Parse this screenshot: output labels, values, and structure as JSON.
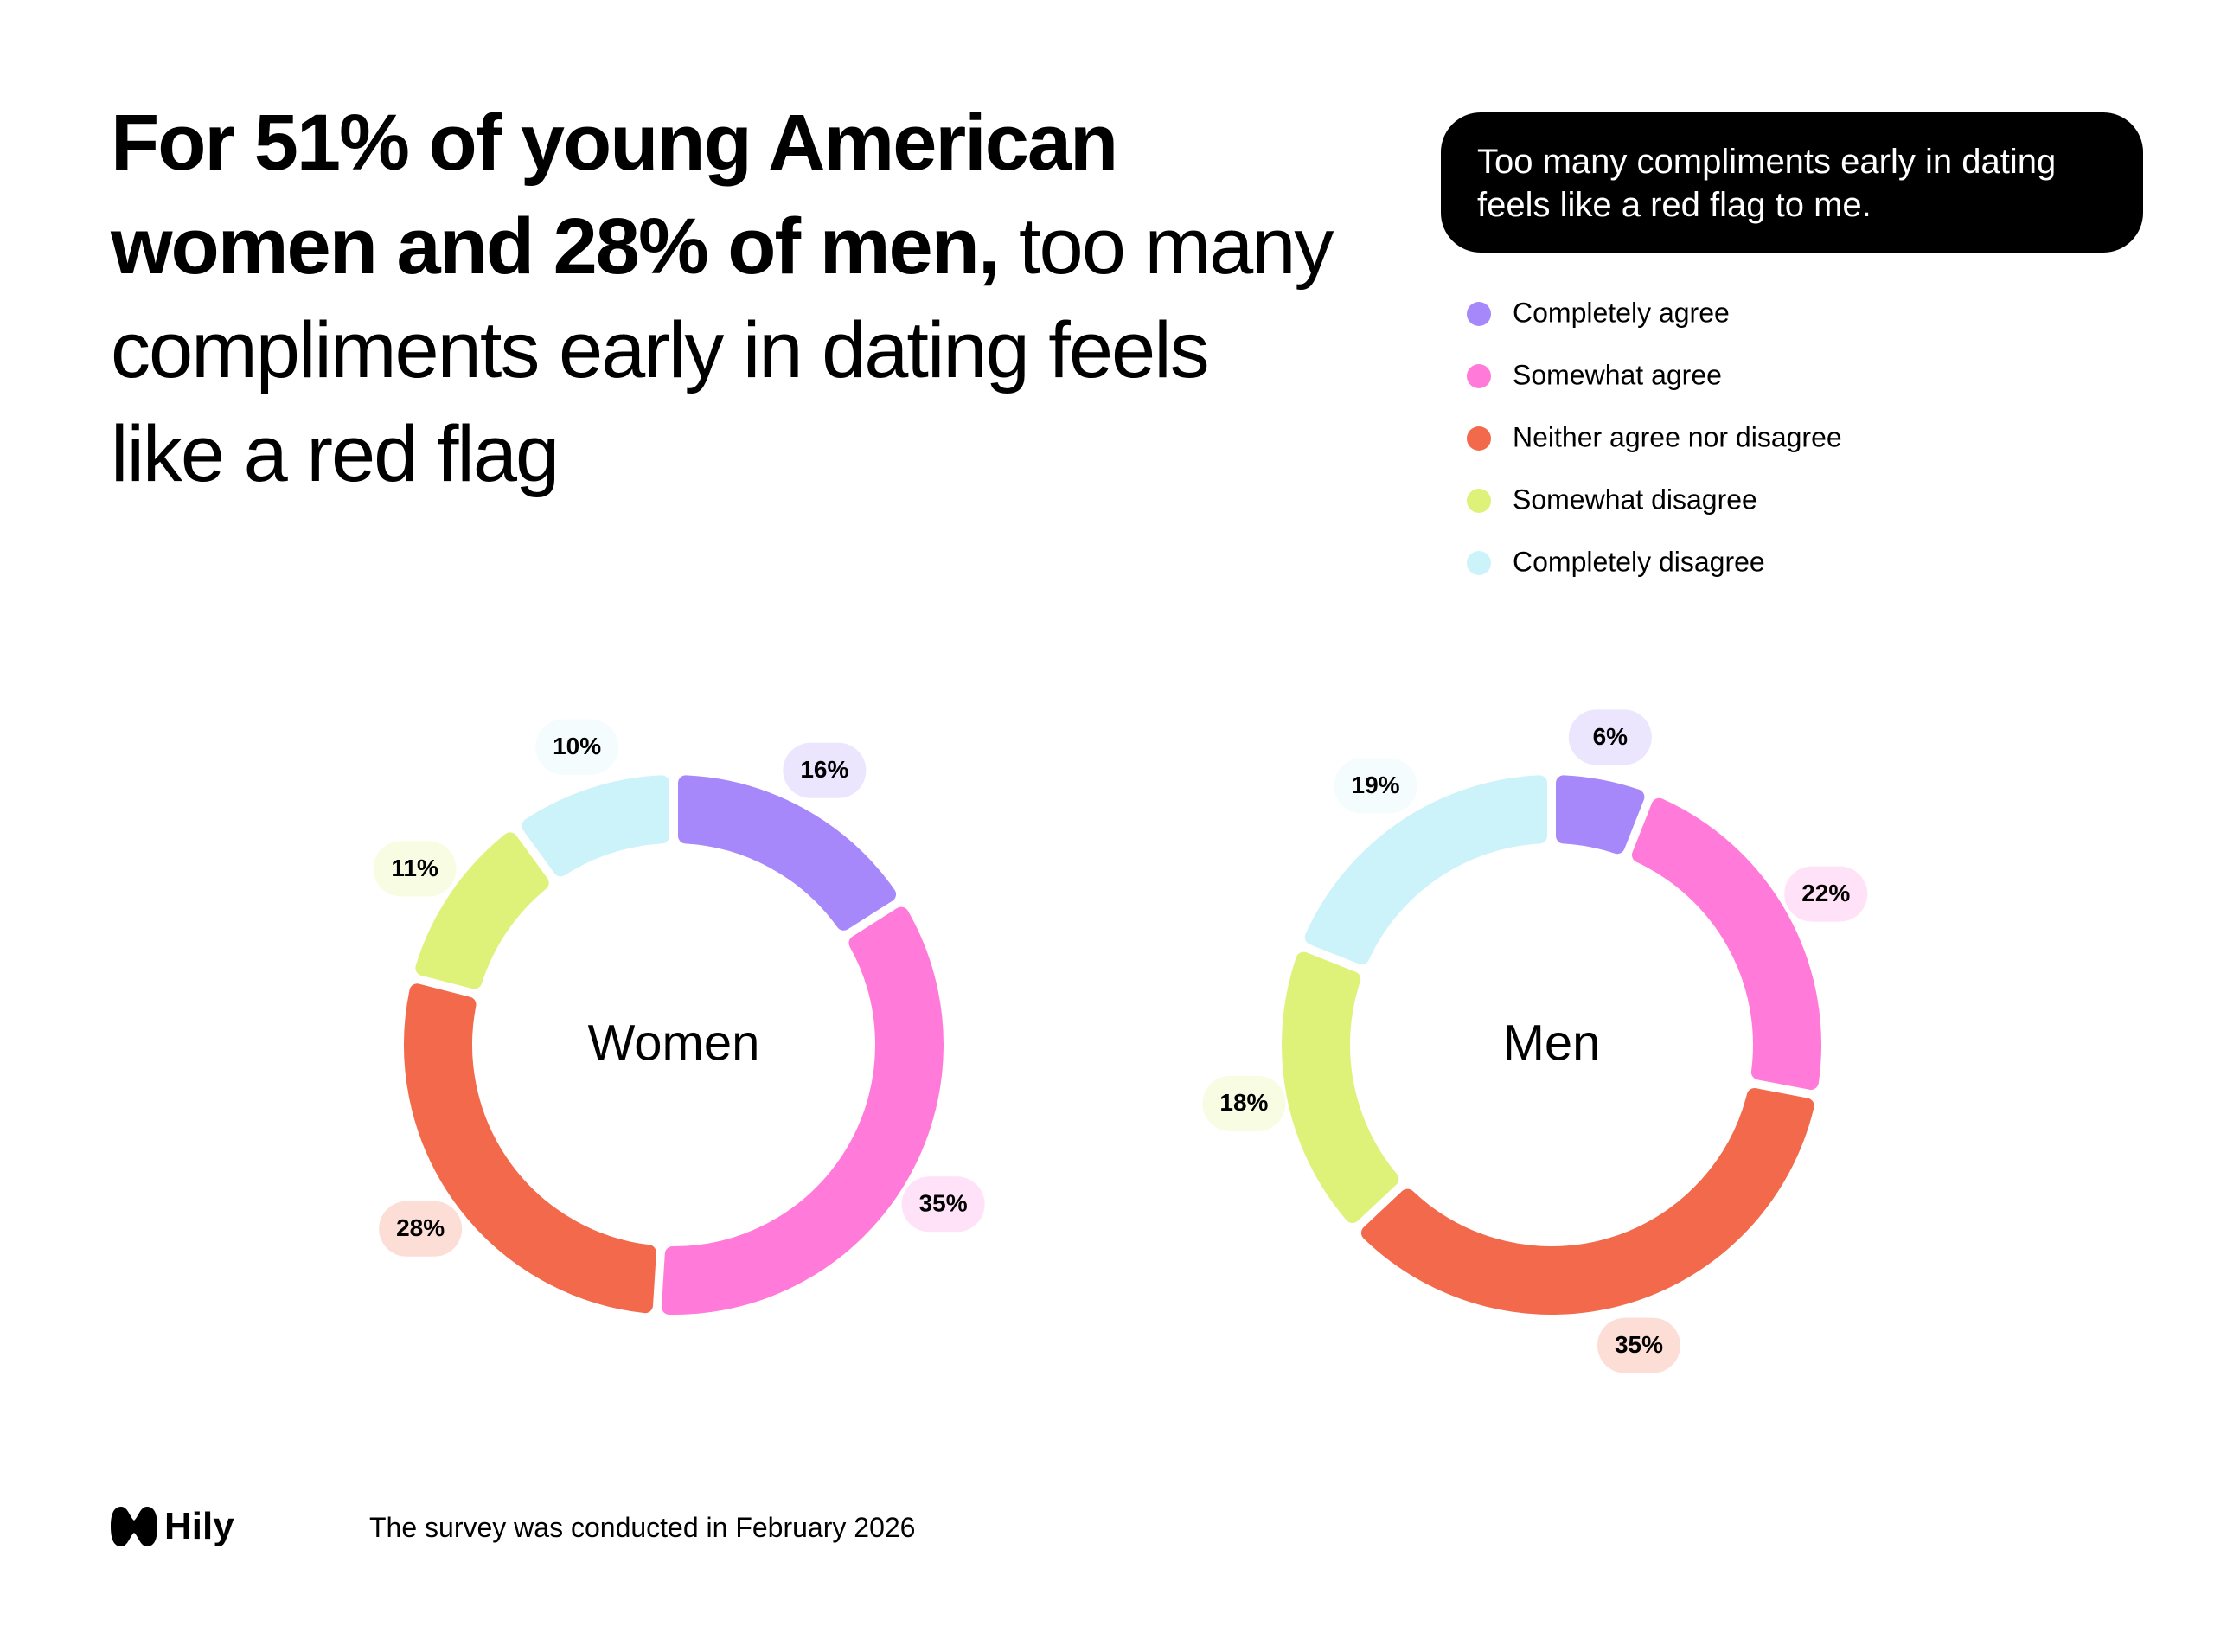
{
  "header": {
    "title_bold": "For 51% of young American women and 28% of men,",
    "title_regular": "too many compliments early in dating feels like a red flag"
  },
  "question": "Too many compliments early in dating feels like a red flag to me.",
  "legend": {
    "categories": [
      "Completely agree",
      "Somewhat agree",
      "Neither agree nor disagree",
      "Somewhat disagree",
      "Completely disagree"
    ],
    "colors": [
      "#a688fa",
      "#ff7ad9",
      "#f26a4b",
      "#def27a",
      "#ccf2fa"
    ]
  },
  "chart_data": [
    {
      "type": "donut",
      "label": "Women",
      "values": [
        16,
        35,
        28,
        11,
        10
      ],
      "value_labels": [
        "16%",
        "35%",
        "28%",
        "11%",
        "10%"
      ]
    },
    {
      "type": "donut",
      "label": "Men",
      "values": [
        6,
        22,
        35,
        18,
        19
      ],
      "value_labels": [
        "6%",
        "22%",
        "35%",
        "18%",
        "19%"
      ]
    }
  ],
  "footer": {
    "logo": "Hily",
    "note": "The survey was conducted in February 2026"
  }
}
